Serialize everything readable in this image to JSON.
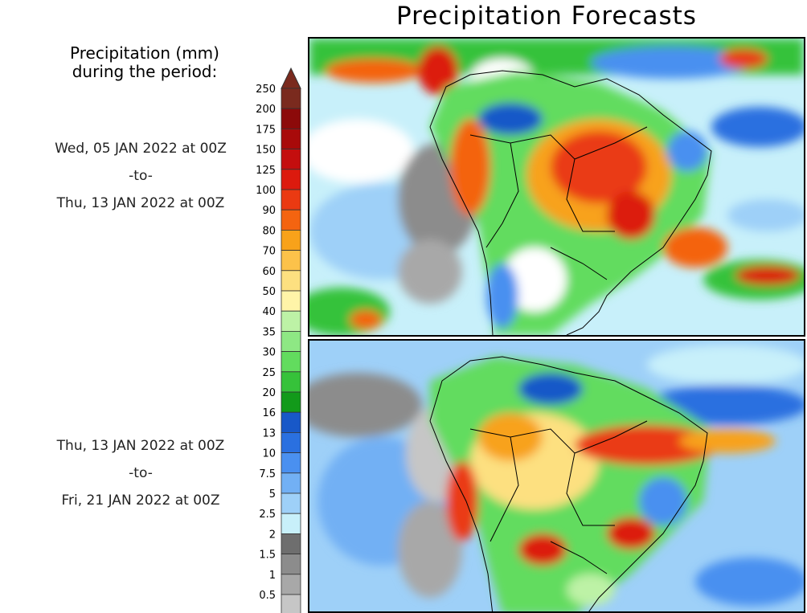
{
  "title": "Precipitation Forecasts",
  "legend": {
    "title_line1": "Precipitation (mm)",
    "title_line2": "during the period:",
    "levels": [
      {
        "label": "250",
        "color": "#7a2a1e"
      },
      {
        "label": "200",
        "color": "#8c0a0a"
      },
      {
        "label": "175",
        "color": "#a80a0a"
      },
      {
        "label": "150",
        "color": "#c40e0e"
      },
      {
        "label": "125",
        "color": "#dc1a0e"
      },
      {
        "label": "100",
        "color": "#ea3a12"
      },
      {
        "label": "90",
        "color": "#f46410"
      },
      {
        "label": "80",
        "color": "#f8a21a"
      },
      {
        "label": "70",
        "color": "#fcc24a"
      },
      {
        "label": "60",
        "color": "#fde080"
      },
      {
        "label": "50",
        "color": "#fff4a8"
      },
      {
        "label": "40",
        "color": "#bdf2a6"
      },
      {
        "label": "35",
        "color": "#8ee884"
      },
      {
        "label": "30",
        "color": "#62dc5e"
      },
      {
        "label": "25",
        "color": "#36c23a"
      },
      {
        "label": "20",
        "color": "#129a1a"
      },
      {
        "label": "16",
        "color": "#1858c8"
      },
      {
        "label": "13",
        "color": "#2a70e0"
      },
      {
        "label": "10",
        "color": "#4a90f0"
      },
      {
        "label": "7.5",
        "color": "#72b0f4"
      },
      {
        "label": "5",
        "color": "#9ed0f8"
      },
      {
        "label": "2.5",
        "color": "#c8f0fa"
      },
      {
        "label": "2",
        "color": "#6e6e6e"
      },
      {
        "label": "1.5",
        "color": "#8c8c8c"
      },
      {
        "label": "1",
        "color": "#a8a8a8"
      },
      {
        "label": "0.5",
        "color": "#c6c6c6"
      }
    ]
  },
  "periods": [
    {
      "start": "Wed, 05 JAN 2022 at 00Z",
      "sep": "-to-",
      "end": "Thu, 13 JAN 2022 at 00Z"
    },
    {
      "start": "Thu, 13 JAN 2022 at 00Z",
      "sep": "-to-",
      "end": "Fri, 21 JAN 2022 at 00Z"
    }
  ]
}
